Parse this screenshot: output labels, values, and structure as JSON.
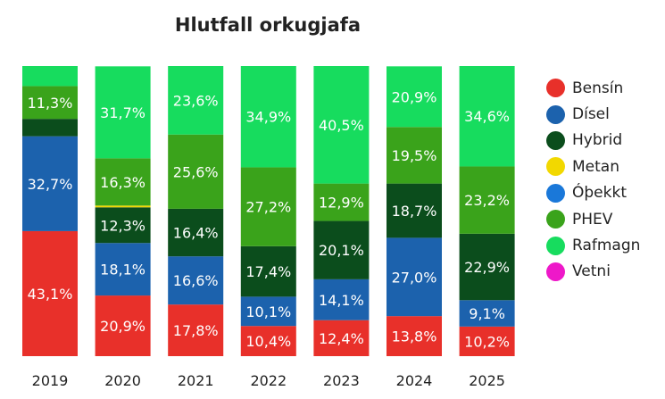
{
  "chart_data": {
    "type": "bar",
    "stacked": true,
    "percent": true,
    "title": "Hlutfall orkugjafa",
    "xlabel": "",
    "ylabel": "",
    "ylim": [
      0,
      100
    ],
    "grid": false,
    "legend_position": "right",
    "categories": [
      "2019",
      "2020",
      "2021",
      "2022",
      "2023",
      "2024",
      "2025"
    ],
    "series": [
      {
        "name": "Bensín",
        "color": "#e8302a",
        "values": [
          43.1,
          20.9,
          17.8,
          10.4,
          12.4,
          13.8,
          10.2
        ],
        "labels": [
          "43,1%",
          "20,9%",
          "17,8%",
          "10,4%",
          "12,4%",
          "13,8%",
          "10,2%"
        ]
      },
      {
        "name": "Dísel",
        "color": "#1c62ad",
        "values": [
          32.7,
          18.1,
          16.6,
          10.1,
          14.1,
          27.0,
          9.1
        ],
        "labels": [
          "32,7%",
          "18,1%",
          "16,6%",
          "10,1%",
          "14,1%",
          "27,0%",
          "9,1%"
        ]
      },
      {
        "name": "Hybrid",
        "color": "#0b4d1c",
        "values": [
          6.0,
          12.3,
          16.4,
          17.4,
          20.1,
          18.7,
          22.9
        ],
        "labels": [
          "",
          "12,3%",
          "16,4%",
          "17,4%",
          "20,1%",
          "18,7%",
          "22,9%"
        ]
      },
      {
        "name": "Metan",
        "color": "#f2d800",
        "values": [
          0,
          0.6,
          0,
          0,
          0,
          0,
          0
        ],
        "labels": [
          "",
          "",
          "",
          "",
          "",
          "",
          ""
        ]
      },
      {
        "name": "Óþekkt",
        "color": "#1a78d9",
        "values": [
          0,
          0,
          0,
          0,
          0,
          0,
          0
        ],
        "labels": [
          "",
          "",
          "",
          "",
          "",
          "",
          ""
        ]
      },
      {
        "name": "PHEV",
        "color": "#3aa31b",
        "values": [
          11.3,
          16.3,
          25.6,
          27.2,
          12.9,
          19.5,
          23.2
        ],
        "labels": [
          "11,3%",
          "16,3%",
          "25,6%",
          "27,2%",
          "12,9%",
          "19,5%",
          "23,2%"
        ]
      },
      {
        "name": "Rafmagn",
        "color": "#17dc5e",
        "values": [
          6.9,
          31.7,
          23.6,
          34.9,
          40.5,
          20.9,
          34.6
        ],
        "labels": [
          "",
          "31,7%",
          "23,6%",
          "34,9%",
          "40,5%",
          "20,9%",
          "34,6%"
        ]
      },
      {
        "name": "Vetni",
        "color": "#ee18c9",
        "values": [
          0,
          0,
          0,
          0,
          0,
          0,
          0
        ],
        "labels": [
          "",
          "",
          "",
          "",
          "",
          "",
          ""
        ]
      }
    ]
  }
}
